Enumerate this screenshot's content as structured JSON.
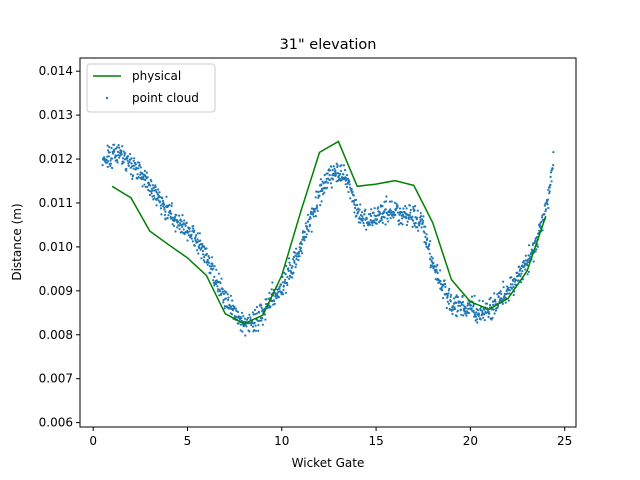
{
  "chart_data": {
    "type": "line",
    "title": "31\" elevation",
    "xlabel": "Wicket Gate",
    "ylabel": "Distance (m)",
    "xlim": [
      -0.7,
      25.6
    ],
    "ylim": [
      0.0059,
      0.0143
    ],
    "x_ticks": [
      0,
      5,
      10,
      15,
      20,
      25
    ],
    "x_tick_labels": [
      "0",
      "5",
      "10",
      "15",
      "20",
      "25"
    ],
    "y_ticks": [
      0.006,
      0.007,
      0.008,
      0.009,
      0.01,
      0.011,
      0.012,
      0.013,
      0.014
    ],
    "y_tick_labels": [
      "0.006",
      "0.007",
      "0.008",
      "0.009",
      "0.010",
      "0.011",
      "0.012",
      "0.013",
      "0.014"
    ],
    "legend_position": "upper-left",
    "grid": false,
    "series": [
      {
        "name": "physical",
        "kind": "line",
        "color": "#008000",
        "x": [
          1,
          2,
          3,
          4,
          5,
          6,
          7,
          8,
          9,
          10,
          11,
          12,
          13,
          14,
          15,
          16,
          17,
          18,
          19,
          20,
          21,
          22,
          23,
          24
        ],
        "y": [
          0.01138,
          0.01112,
          0.01036,
          0.01005,
          0.00975,
          0.00935,
          0.00848,
          0.00825,
          0.00845,
          0.00935,
          0.0108,
          0.01215,
          0.0124,
          0.01138,
          0.01143,
          0.01151,
          0.0114,
          0.01055,
          0.00925,
          0.00875,
          0.00858,
          0.00883,
          0.00945,
          0.0107
        ]
      },
      {
        "name": "point cloud",
        "kind": "scatter",
        "color": "#1f77b4",
        "profile_x": [
          0.5,
          1.0,
          1.5,
          2.0,
          2.5,
          3.0,
          3.5,
          4.0,
          4.5,
          5.0,
          5.5,
          6.0,
          6.5,
          7.0,
          7.5,
          8.0,
          8.5,
          9.0,
          9.5,
          10.0,
          10.5,
          11.0,
          11.5,
          12.0,
          12.5,
          13.0,
          13.5,
          14.0,
          14.5,
          15.0,
          15.5,
          16.0,
          16.5,
          17.0,
          17.5,
          18.0,
          18.5,
          19.0,
          19.5,
          20.0,
          20.5,
          21.0,
          21.5,
          22.0,
          22.5,
          23.0,
          23.5,
          24.0,
          24.4
        ],
        "profile_y": [
          0.012,
          0.0121,
          0.01215,
          0.0119,
          0.0117,
          0.0114,
          0.0111,
          0.0108,
          0.0106,
          0.0104,
          0.01015,
          0.0098,
          0.0093,
          0.0088,
          0.0085,
          0.0082,
          0.0083,
          0.0085,
          0.0088,
          0.0091,
          0.0095,
          0.01,
          0.0106,
          0.0112,
          0.0116,
          0.01175,
          0.0115,
          0.0108,
          0.0106,
          0.0107,
          0.0108,
          0.0108,
          0.01075,
          0.0107,
          0.0105,
          0.0096,
          0.0091,
          0.0087,
          0.00865,
          0.0086,
          0.0085,
          0.0086,
          0.0088,
          0.009,
          0.0093,
          0.0096,
          0.0101,
          0.0108,
          0.0119
        ],
        "spread": 0.00018
      }
    ]
  }
}
